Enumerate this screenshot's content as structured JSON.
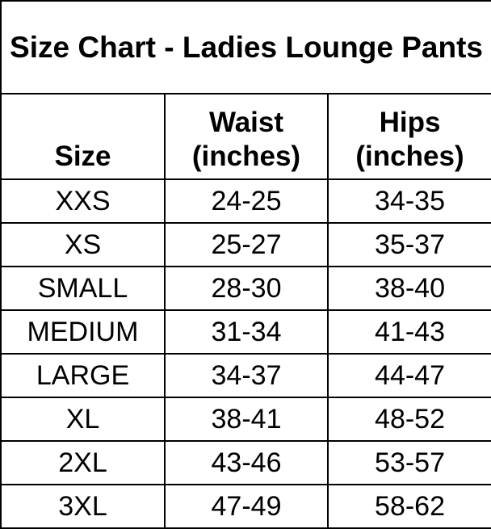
{
  "title": "Size Chart - Ladies Lounge Pants",
  "columns": [
    {
      "line1": "",
      "line2": "Size"
    },
    {
      "line1": "Waist",
      "line2": "(inches)"
    },
    {
      "line1": "Hips",
      "line2": "(inches)"
    }
  ],
  "rows": [
    [
      "XXS",
      "24-25",
      "34-35"
    ],
    [
      "XS",
      "25-27",
      "35-37"
    ],
    [
      "SMALL",
      "28-30",
      "38-40"
    ],
    [
      "MEDIUM",
      "31-34",
      "41-43"
    ],
    [
      "LARGE",
      "34-37",
      "44-47"
    ],
    [
      "XL",
      "38-41",
      "48-52"
    ],
    [
      "2XL",
      "43-46",
      "53-57"
    ],
    [
      "3XL",
      "47-49",
      "58-62"
    ]
  ]
}
